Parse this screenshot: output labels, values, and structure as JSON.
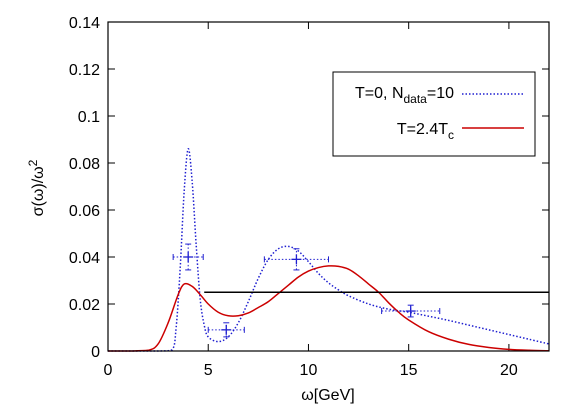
{
  "chart_data": {
    "type": "line",
    "xlabel": "ω[GeV]",
    "ylabel_main": "σ(ω)/ω",
    "ylabel_sup": "2",
    "xlim": [
      0,
      22
    ],
    "ylim": [
      0,
      0.14
    ],
    "x_ticks": [
      0,
      5,
      10,
      15,
      20
    ],
    "x_tick_labels": [
      "0",
      "5",
      "10",
      "15",
      "20"
    ],
    "y_ticks": [
      0,
      0.02,
      0.04,
      0.06,
      0.08,
      0.1,
      0.12,
      0.14
    ],
    "y_tick_labels": [
      "0",
      "0.02",
      "0.04",
      "0.06",
      "0.08",
      "0.1",
      "0.12",
      "0.14"
    ],
    "grid": false,
    "legend_position": "top-right",
    "legend": {
      "entry1": {
        "main": "T=0, N",
        "sub": "data",
        "rest": "=10",
        "color": "#1f1fd0",
        "style": "dotted"
      },
      "entry2": {
        "main": "T=2.4T",
        "sub": "c",
        "color": "#cc0000",
        "style": "solid"
      }
    },
    "series": [
      {
        "color": "#1f1fd0",
        "style": "dotted",
        "x": [
          0,
          2.5,
          3.2,
          3.4,
          3.6,
          3.8,
          4.0,
          4.2,
          4.4,
          4.6,
          4.8,
          5.0,
          5.5,
          6.0,
          6.5,
          7.0,
          7.5,
          8.0,
          8.5,
          9.0,
          9.5,
          10.0,
          10.5,
          11.0,
          11.5,
          12.0,
          13.0,
          14.0,
          15.0,
          16.0,
          17.0,
          18.0,
          19.0,
          20.0,
          21.0,
          22.0
        ],
        "y": [
          0,
          0,
          0.0005,
          0.01,
          0.035,
          0.068,
          0.086,
          0.072,
          0.045,
          0.022,
          0.011,
          0.006,
          0.004,
          0.006,
          0.012,
          0.021,
          0.031,
          0.039,
          0.0435,
          0.0445,
          0.0425,
          0.038,
          0.033,
          0.029,
          0.026,
          0.0235,
          0.02,
          0.0178,
          0.0165,
          0.0148,
          0.013,
          0.011,
          0.009,
          0.007,
          0.005,
          0.003
        ]
      },
      {
        "color": "#cc0000",
        "style": "solid",
        "x": [
          0,
          1.0,
          2.0,
          2.5,
          3.0,
          3.5,
          3.8,
          4.2,
          4.6,
          5.0,
          5.5,
          6.0,
          6.5,
          7.0,
          7.5,
          8.0,
          8.5,
          9.0,
          9.5,
          10.0,
          10.5,
          11.0,
          11.5,
          12.0,
          12.5,
          13.0,
          13.5,
          14.0,
          14.5,
          15.0,
          16.0,
          17.0,
          18.0,
          19.0,
          20.0,
          21.0,
          22.0
        ],
        "y": [
          0,
          0,
          0.0003,
          0.003,
          0.012,
          0.024,
          0.0285,
          0.0275,
          0.024,
          0.02,
          0.0165,
          0.015,
          0.015,
          0.0162,
          0.0185,
          0.021,
          0.0245,
          0.028,
          0.0315,
          0.034,
          0.0355,
          0.0362,
          0.036,
          0.0348,
          0.032,
          0.0285,
          0.025,
          0.0205,
          0.0165,
          0.0132,
          0.0082,
          0.005,
          0.0028,
          0.0015,
          0.0007,
          0.0003,
          0.0001
        ]
      },
      {
        "color": "#000000",
        "style": "solid",
        "x": [
          4.8,
          22.0
        ],
        "y": [
          0.025,
          0.025
        ]
      }
    ],
    "error_points": [
      {
        "x": 4.0,
        "y": 0.04,
        "xerr": 0.75,
        "yerr": 0.0055
      },
      {
        "x": 5.9,
        "y": 0.009,
        "xerr": 0.9,
        "yerr": 0.003
      },
      {
        "x": 9.4,
        "y": 0.039,
        "xerr": 1.6,
        "yerr": 0.0045
      },
      {
        "x": 15.1,
        "y": 0.017,
        "xerr": 1.45,
        "yerr": 0.0025
      }
    ]
  }
}
